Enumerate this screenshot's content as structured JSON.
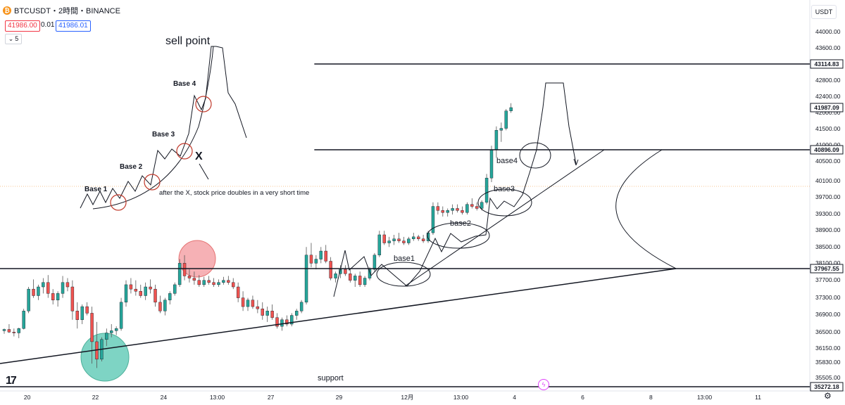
{
  "header": {
    "coin_icon": "bitcoin-icon",
    "symbol": "BTCUSDT・2時間・BINANCE",
    "sell_price": "41986.00",
    "spread": "0.01",
    "buy_price": "41986.01",
    "stepper_value": "5",
    "stepper_icon": "stepper-icon"
  },
  "currency_button": "USDT",
  "settings_icon": "settings-icon",
  "flash_icon": "lightning-icon",
  "logo": "TV",
  "colors": {
    "up": "#26a69a",
    "down": "#ef5350",
    "wick": "#555555",
    "pink": "#f4a3a8",
    "teal": "#5ec9b5"
  },
  "chart_data": {
    "type": "candlestick",
    "title": "BTCUSDT・2時間・BINANCE",
    "y_range": [
      35000,
      44000
    ],
    "y_ticks": [
      "44000.00",
      "43600.00",
      "43200.00",
      "42800.00",
      "42400.00",
      "42000.00",
      "41500.00",
      "41000.00",
      "40500.00",
      "40100.00",
      "39700.00",
      "39300.00",
      "38900.00",
      "38500.00",
      "38100.00",
      "37700.00",
      "37300.00",
      "36900.00",
      "36500.00",
      "36150.00",
      "35830.00",
      "35505.00"
    ],
    "x_ticks": [
      {
        "label": "20",
        "slot": 5
      },
      {
        "label": "22",
        "slot": 19
      },
      {
        "label": "24",
        "slot": 33
      },
      {
        "label": "13:00",
        "slot": 44
      },
      {
        "label": "27",
        "slot": 55
      },
      {
        "label": "29",
        "slot": 69
      },
      {
        "label": "12月",
        "slot": 83
      },
      {
        "label": "13:00",
        "slot": 94
      },
      {
        "label": "4",
        "slot": 105
      },
      {
        "label": "6",
        "slot": 119
      },
      {
        "label": "8",
        "slot": 133
      },
      {
        "label": "13:00",
        "slot": 144
      },
      {
        "label": "11",
        "slot": 155
      }
    ],
    "price_levels": [
      {
        "price": 43114.83,
        "label": "43114.83",
        "x_start": 64.5
      },
      {
        "price": 41987.09,
        "label": "41987.09",
        "current": true
      },
      {
        "price": 40896.09,
        "label": "40896.09",
        "x_start": 64.5
      },
      {
        "price": 37967.55,
        "label": "37967.55",
        "x_start": 0
      },
      {
        "price": 35272.18,
        "label": "35272.18",
        "x_start": 0
      }
    ],
    "candles": [
      [
        36550,
        36600,
        36480,
        36580
      ],
      [
        36580,
        36700,
        36500,
        36520
      ],
      [
        36520,
        36600,
        36420,
        36500
      ],
      [
        36500,
        36620,
        36380,
        36600
      ],
      [
        36600,
        37050,
        36580,
        37000
      ],
      [
        37000,
        37550,
        36950,
        37500
      ],
      [
        37500,
        37720,
        37300,
        37350
      ],
      [
        37350,
        37600,
        37250,
        37550
      ],
      [
        37550,
        37750,
        37400,
        37650
      ],
      [
        37650,
        37820,
        37300,
        37400
      ],
      [
        37400,
        37500,
        37150,
        37250
      ],
      [
        37250,
        37450,
        37100,
        37400
      ],
      [
        37400,
        37800,
        37300,
        37650
      ],
      [
        37650,
        37750,
        37450,
        37550
      ],
      [
        37550,
        37700,
        36800,
        37000
      ],
      [
        37000,
        37200,
        36600,
        36800
      ],
      [
        36800,
        37150,
        36700,
        37100
      ],
      [
        37100,
        37200,
        36900,
        36950
      ],
      [
        36950,
        37100,
        35800,
        36300
      ],
      [
        36300,
        36750,
        35700,
        35900
      ],
      [
        35900,
        36400,
        35850,
        36350
      ],
      [
        36350,
        36600,
        36200,
        36500
      ],
      [
        36500,
        36700,
        36400,
        36550
      ],
      [
        36550,
        36650,
        36450,
        36600
      ],
      [
        36600,
        37300,
        36550,
        37200
      ],
      [
        37200,
        37700,
        37100,
        37600
      ],
      [
        37600,
        37750,
        37400,
        37500
      ],
      [
        37500,
        37700,
        37350,
        37450
      ],
      [
        37450,
        37600,
        37300,
        37350
      ],
      [
        37350,
        37650,
        37250,
        37550
      ],
      [
        37550,
        37720,
        37400,
        37500
      ],
      [
        37500,
        37600,
        37100,
        37200
      ],
      [
        37200,
        37350,
        36950,
        37000
      ],
      [
        37000,
        37300,
        36900,
        37250
      ],
      [
        37250,
        37450,
        37150,
        37400
      ],
      [
        37400,
        37650,
        37350,
        37600
      ],
      [
        37600,
        38200,
        37550,
        38100
      ],
      [
        38100,
        38300,
        37700,
        37800
      ],
      [
        37800,
        37950,
        37650,
        37750
      ],
      [
        37750,
        37900,
        37600,
        37700
      ],
      [
        37700,
        37820,
        37550,
        37600
      ],
      [
        37600,
        37780,
        37550,
        37700
      ],
      [
        37700,
        37800,
        37600,
        37650
      ],
      [
        37650,
        37750,
        37550,
        37600
      ],
      [
        37600,
        37720,
        37550,
        37650
      ],
      [
        37650,
        37780,
        37600,
        37700
      ],
      [
        37700,
        37800,
        37600,
        37650
      ],
      [
        37650,
        37750,
        37500,
        37550
      ],
      [
        37550,
        37650,
        37200,
        37300
      ],
      [
        37300,
        37450,
        37000,
        37100
      ],
      [
        37100,
        37300,
        37000,
        37250
      ],
      [
        37250,
        37350,
        37050,
        37100
      ],
      [
        37100,
        37250,
        36950,
        37050
      ],
      [
        37050,
        37200,
        36800,
        36900
      ],
      [
        36900,
        37100,
        36750,
        37000
      ],
      [
        37000,
        37150,
        36800,
        36850
      ],
      [
        36850,
        36950,
        36600,
        36650
      ],
      [
        36650,
        36850,
        36550,
        36800
      ],
      [
        36800,
        36900,
        36650,
        36700
      ],
      [
        36700,
        36950,
        36650,
        36900
      ],
      [
        36900,
        37050,
        36800,
        37000
      ],
      [
        37000,
        37250,
        36950,
        37200
      ],
      [
        37200,
        38500,
        37150,
        38300
      ],
      [
        38300,
        38600,
        38000,
        38100
      ],
      [
        38100,
        38300,
        37950,
        38200
      ],
      [
        38200,
        38500,
        38100,
        38400
      ],
      [
        38400,
        38550,
        38100,
        38150
      ],
      [
        38150,
        38250,
        37700,
        37750
      ],
      [
        37750,
        37900,
        37650,
        37850
      ],
      [
        37850,
        38050,
        37750,
        37950
      ],
      [
        37950,
        38050,
        37800,
        37850
      ],
      [
        37850,
        37950,
        37650,
        37700
      ],
      [
        37700,
        37850,
        37550,
        37800
      ],
      [
        37800,
        37900,
        37550,
        37600
      ],
      [
        37600,
        37800,
        37550,
        37750
      ],
      [
        37750,
        38000,
        37700,
        37950
      ],
      [
        37950,
        38350,
        37900,
        38300
      ],
      [
        38300,
        38900,
        38250,
        38800
      ],
      [
        38800,
        38900,
        38550,
        38600
      ],
      [
        38600,
        38750,
        38500,
        38650
      ],
      [
        38650,
        38800,
        38550,
        38700
      ],
      [
        38700,
        38850,
        38600,
        38650
      ],
      [
        38650,
        38750,
        38550,
        38600
      ],
      [
        38600,
        38750,
        38550,
        38700
      ],
      [
        38700,
        38850,
        38650,
        38750
      ],
      [
        38750,
        38800,
        38650,
        38700
      ],
      [
        38700,
        38800,
        38600,
        38650
      ],
      [
        38650,
        38900,
        38600,
        38850
      ],
      [
        38850,
        39600,
        38800,
        39500
      ],
      [
        39500,
        39600,
        39300,
        39400
      ],
      [
        39400,
        39500,
        39250,
        39350
      ],
      [
        39350,
        39450,
        39250,
        39400
      ],
      [
        39400,
        39550,
        39300,
        39450
      ],
      [
        39450,
        39550,
        39350,
        39400
      ],
      [
        39400,
        39500,
        39300,
        39350
      ],
      [
        39350,
        39600,
        39300,
        39550
      ],
      [
        39550,
        39700,
        39450,
        39500
      ],
      [
        39500,
        39600,
        39400,
        39450
      ],
      [
        39450,
        39650,
        39400,
        39600
      ],
      [
        39600,
        40300,
        39550,
        40200
      ],
      [
        40200,
        41000,
        40100,
        40900
      ],
      [
        40900,
        41500,
        40700,
        41400
      ],
      [
        41400,
        41600,
        41100,
        41450
      ],
      [
        41450,
        41950,
        41400,
        41900
      ],
      [
        41900,
        42100,
        41850,
        41987
      ]
    ]
  },
  "annotations": {
    "sell_point": "sell point",
    "base4_top": "Base 4",
    "base3_top": "Base 3",
    "base2_top": "Base 2",
    "base1_top": "Base 1",
    "x_mark": "X",
    "note": "after the X, stock price doubles in a very short time",
    "support": "support",
    "base1": "base1",
    "base2": "base2",
    "base3": "base3",
    "base4": "base4"
  }
}
